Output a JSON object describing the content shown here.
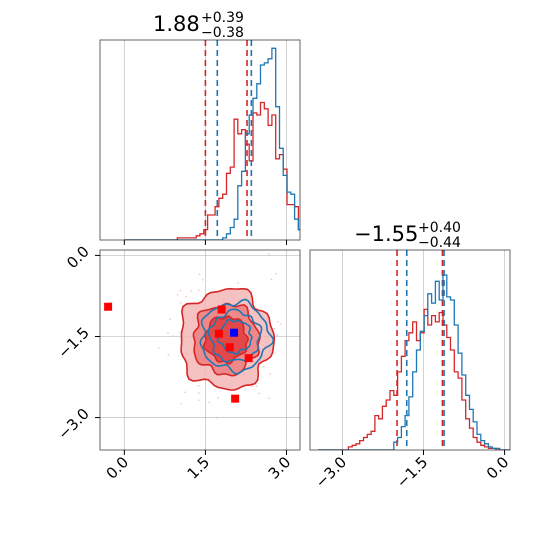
{
  "chart_data": [
    {
      "type": "histogram",
      "panel": "top-left",
      "title": {
        "value": "1.88",
        "plus": "+0.39",
        "minus": "−0.38"
      },
      "xlim": [
        -0.45,
        3.25
      ],
      "bins": {
        "start": 0.0,
        "width": 0.07
      },
      "series": [
        {
          "color": "#d62728",
          "counts": [
            0,
            0,
            0,
            0,
            0,
            0,
            0,
            0,
            0,
            0,
            0,
            0,
            0,
            0,
            1,
            1,
            1,
            1,
            1,
            2,
            3,
            5,
            12,
            12,
            16,
            20,
            22,
            32,
            35,
            58,
            51,
            53,
            46,
            38,
            61,
            60,
            66,
            63,
            55,
            60,
            39,
            41,
            34,
            17,
            17,
            16,
            5,
            4,
            5,
            2,
            2,
            1,
            1,
            0
          ],
          "quantiles": [
            1.5,
            2.27
          ]
        },
        {
          "color": "#1f77b4",
          "counts": [
            0,
            0,
            0,
            0,
            0,
            0,
            0,
            0,
            0,
            0,
            0,
            0,
            0,
            0,
            0,
            0,
            0,
            0,
            0,
            0,
            0,
            0,
            0,
            0,
            0,
            0,
            1,
            3,
            6,
            10,
            26,
            33,
            51,
            60,
            68,
            75,
            84,
            85,
            87,
            92,
            64,
            44,
            31,
            23,
            22,
            10,
            5,
            3,
            2,
            1,
            1,
            0,
            0,
            0
          ],
          "quantiles": [
            1.72,
            2.35
          ]
        }
      ],
      "ylim": [
        0,
        96
      ],
      "grid": true
    },
    {
      "type": "contour",
      "panel": "bottom-left",
      "xlim": [
        -0.45,
        3.25
      ],
      "ylim": [
        -3.6,
        0.1
      ],
      "xticks": [
        "0.0",
        "1.5",
        "3.0"
      ],
      "yticks": [
        "0.0",
        "−1.5",
        "−3.0"
      ],
      "contours": [
        {
          "color": "#d62728",
          "style": "filled",
          "center": [
            1.88,
            -1.55
          ],
          "sigma": [
            0.39,
            0.42
          ],
          "levels": [
            1.0,
            1.55,
            2.2
          ]
        },
        {
          "color": "#1f77b4",
          "style": "line",
          "center": [
            2.05,
            -1.5
          ],
          "sigma": [
            0.3,
            0.3
          ],
          "levels": [
            1.0,
            1.55,
            2.1
          ]
        }
      ],
      "markers": [
        {
          "color": "#ff0000",
          "x": [
            -0.3,
            1.8,
            1.75,
            1.95,
            2.3,
            2.05
          ],
          "y": [
            -0.95,
            -1.0,
            -1.45,
            -1.7,
            -1.9,
            -2.65
          ]
        },
        {
          "color": "#0000ff",
          "x": [
            2.03
          ],
          "y": [
            -1.43
          ]
        }
      ],
      "grid": true
    },
    {
      "type": "histogram",
      "panel": "bottom-right",
      "title": {
        "value": "−1.55",
        "plus": "+0.40",
        "minus": "−0.44"
      },
      "xlim": [
        -3.6,
        0.1
      ],
      "xticks": [
        "−3.0",
        "−1.5",
        "0.0"
      ],
      "bins": {
        "start": -3.45,
        "width": 0.07
      },
      "series": [
        {
          "color": "#d62728",
          "counts": [
            0,
            0,
            0,
            0,
            0,
            0,
            0,
            0,
            2,
            3,
            4,
            6,
            8,
            10,
            12,
            22,
            20,
            28,
            32,
            38,
            35,
            50,
            60,
            70,
            75,
            82,
            70,
            75,
            90,
            80,
            86,
            82,
            88,
            80,
            72,
            64,
            50,
            46,
            32,
            20,
            14,
            8,
            5,
            3,
            2,
            1,
            1,
            0,
            0,
            0,
            0,
            0,
            0
          ],
          "quantiles": [
            -1.99,
            -1.15
          ]
        },
        {
          "color": "#1f77b4",
          "counts": [
            0,
            0,
            0,
            0,
            0,
            0,
            0,
            0,
            0,
            0,
            0,
            0,
            0,
            0,
            0,
            0,
            0,
            0,
            0,
            0,
            5,
            8,
            15,
            22,
            34,
            50,
            64,
            76,
            86,
            100,
            94,
            108,
            96,
            112,
            98,
            96,
            80,
            62,
            48,
            35,
            26,
            18,
            10,
            6,
            4,
            2,
            1,
            1,
            0,
            0,
            0,
            0,
            0
          ],
          "quantiles": [
            -1.81,
            -1.12
          ]
        }
      ],
      "ylim": [
        0,
        128
      ],
      "grid": true
    }
  ]
}
